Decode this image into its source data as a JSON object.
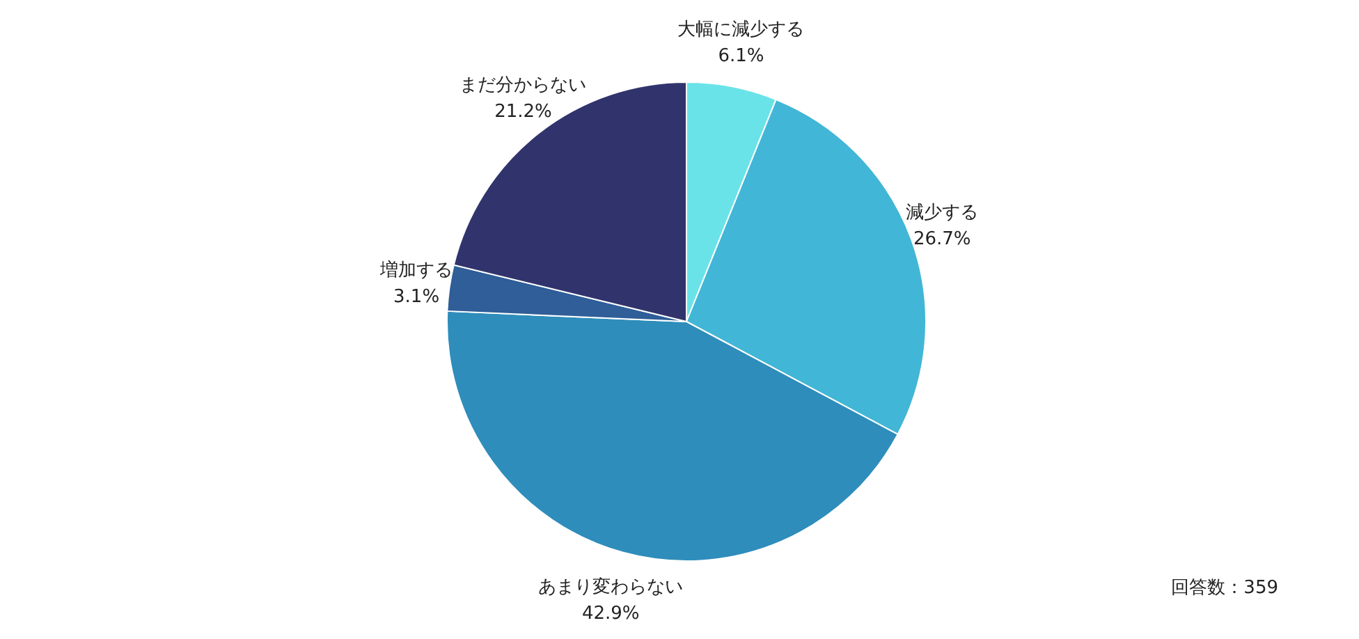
{
  "chart_data": {
    "type": "pie",
    "categories": [
      "大幅に減少する",
      "減少する",
      "あまり変わらない",
      "増加する",
      "まだ分からない"
    ],
    "values": [
      6.1,
      26.7,
      42.9,
      3.1,
      21.2
    ],
    "value_labels": [
      "6.1%",
      "26.7%",
      "42.9%",
      "3.1%",
      "21.2%"
    ],
    "colors": [
      "#6ae3e8",
      "#42b6d6",
      "#2e8dbb",
      "#2f5e98",
      "#31346c"
    ],
    "annotations": [
      "回答数：359"
    ]
  }
}
